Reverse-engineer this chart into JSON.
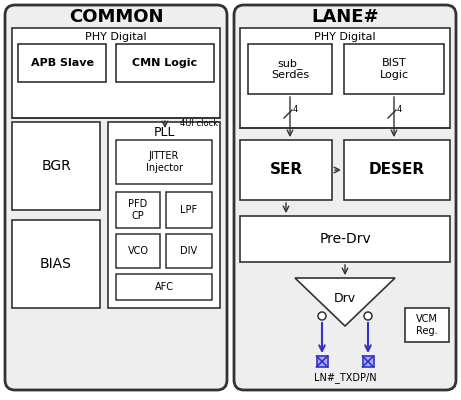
{
  "bg_color": "#ffffff",
  "common_label": "COMMON",
  "lane_label": "LANE#",
  "phy_digital_label": "PHY Digital",
  "apb_slave_label": "APB Slave",
  "cmn_logic_label": "CMN Logic",
  "bgr_label": "BGR",
  "bias_label": "BIAS",
  "pll_label": "PLL",
  "jitter_label": "JITTER\nInjector",
  "pfd_cp_label": "PFD\nCP",
  "lpf_label": "LPF",
  "vco_label": "VCO",
  "div_label": "DIV",
  "afc_label": "AFC",
  "clock_label": "4UI clock",
  "lane_phy_digital_label": "PHY Digital",
  "sub_serdes_label": "sub_\nSerdes",
  "bist_logic_label": "BIST\nLogic",
  "ser_label": "SER",
  "deser_label": "DESER",
  "pre_drv_label": "Pre-Drv",
  "drv_label": "Drv",
  "vcm_reg_label": "VCM\nReg.",
  "pin_label": "LN#_TXDP/N",
  "arrow_color": "#3333cc",
  "box_color": "#333333",
  "gray_box_color": "#aaaaaa",
  "text_color": "#000000"
}
